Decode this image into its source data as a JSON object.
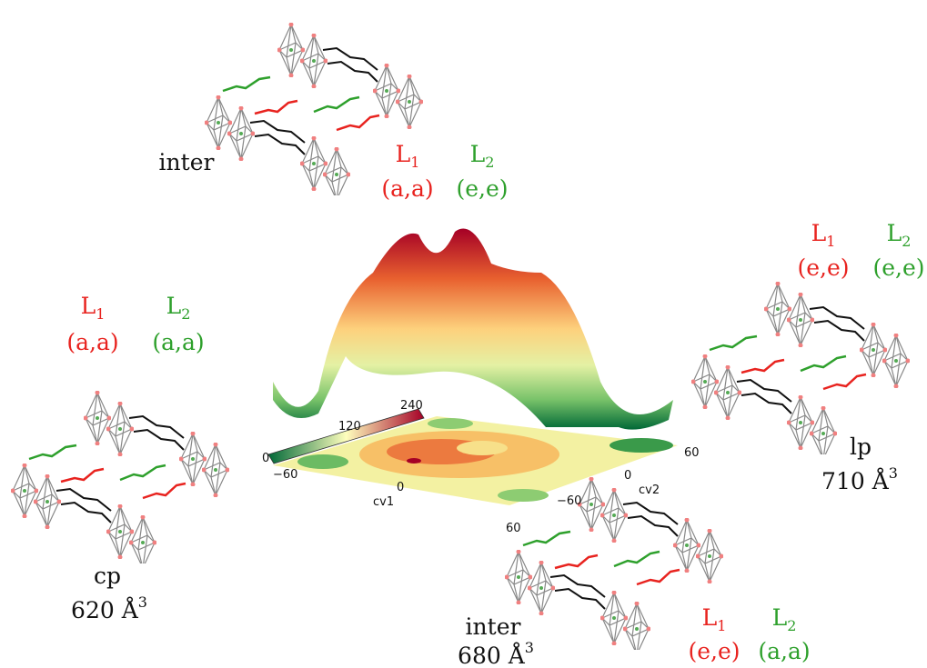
{
  "panels": {
    "top": {
      "label": "inter",
      "ligands": [
        {
          "symbol": "L",
          "index": "1",
          "state": "(a,a)"
        },
        {
          "symbol": "L",
          "index": "2",
          "state": "(e,e)"
        }
      ]
    },
    "left": {
      "label": "cp",
      "volume": {
        "value": "620 Å",
        "exponent": "3"
      },
      "ligands": [
        {
          "symbol": "L",
          "index": "1",
          "state": "(a,a)"
        },
        {
          "symbol": "L",
          "index": "2",
          "state": "(a,a)"
        }
      ]
    },
    "right": {
      "label": "lp",
      "volume": {
        "value": "710 Å",
        "exponent": "3"
      },
      "ligands": [
        {
          "symbol": "L",
          "index": "1",
          "state": "(e,e)"
        },
        {
          "symbol": "L",
          "index": "2",
          "state": "(e,e)"
        }
      ]
    },
    "bottom": {
      "label": "inter",
      "volume": {
        "value": "680 Å",
        "exponent": "3"
      },
      "ligands": [
        {
          "symbol": "L",
          "index": "1",
          "state": "(e,e)"
        },
        {
          "symbol": "L",
          "index": "2",
          "state": "(a,a)"
        }
      ]
    }
  },
  "surface": {
    "colorbar_ticks": [
      "0",
      "120",
      "240"
    ],
    "cv1": {
      "label": "cv1",
      "ticks": [
        "−60",
        "0",
        "60"
      ]
    },
    "cv2": {
      "label": "cv2",
      "ticks": [
        "−60",
        "0",
        "60"
      ]
    }
  }
}
